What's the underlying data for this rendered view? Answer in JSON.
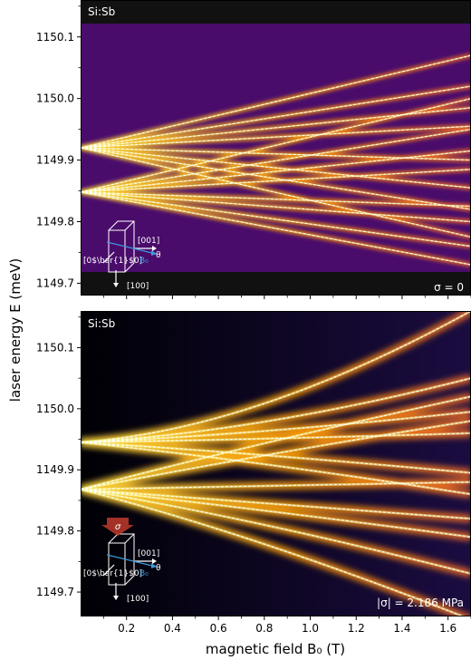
{
  "figure": {
    "ylabel": "laser energy E (meV)",
    "xlabel": "magnetic field B₀ (T)",
    "colormap": [
      "#000004",
      "#1b0c41",
      "#4a0c6b",
      "#781c6d",
      "#a52c60",
      "#cf4446",
      "#ed6925",
      "#fb9b06",
      "#f7d13d",
      "#fcffa4"
    ],
    "fit_line_color": "#ffffff"
  },
  "chart_data": [
    {
      "type": "heatmap",
      "panel": "top",
      "title": "",
      "tag": "Si:Sb",
      "stress_label": "σ = 0",
      "xlim": [
        0.0,
        1.7
      ],
      "ylim": [
        1149.68,
        1150.16
      ],
      "x_ticks": [
        0.2,
        0.4,
        0.6,
        0.8,
        1.0,
        1.2,
        1.4,
        1.6
      ],
      "x_tick_labels": [
        "0.2",
        "0.4",
        "0.6",
        "0.8",
        "1.0",
        "1.2",
        "1.4",
        "1.6"
      ],
      "y_ticks": [
        1149.7,
        1149.8,
        1149.9,
        1150.0,
        1150.1
      ],
      "y_tick_labels": [
        "1149.7",
        "1149.8",
        "1149.9",
        "1150.0",
        "1150.1"
      ],
      "grid": false,
      "origins": [
        1149.92,
        1149.848
      ],
      "lines": [
        {
          "origin": 0,
          "end": 1150.07
        },
        {
          "origin": 0,
          "end": 1150.02
        },
        {
          "origin": 0,
          "end": 1149.985
        },
        {
          "origin": 0,
          "end": 1149.955
        },
        {
          "origin": 0,
          "end": 1149.9
        },
        {
          "origin": 0,
          "end": 1149.855
        },
        {
          "origin": 0,
          "end": 1149.82
        },
        {
          "origin": 0,
          "end": 1149.775
        },
        {
          "origin": 1,
          "end": 1150.0
        },
        {
          "origin": 1,
          "end": 1149.95
        },
        {
          "origin": 1,
          "end": 1149.915
        },
        {
          "origin": 1,
          "end": 1149.885
        },
        {
          "origin": 1,
          "end": 1149.825
        },
        {
          "origin": 1,
          "end": 1149.8
        },
        {
          "origin": 1,
          "end": 1149.76
        },
        {
          "origin": 1,
          "end": 1149.73
        }
      ],
      "fit_lines_dashed": true,
      "diagram": {
        "labels": [
          "[0$\\bar{1}$0]",
          "[001]",
          "[100]",
          "B₀",
          "θ"
        ]
      }
    },
    {
      "type": "heatmap",
      "panel": "bottom",
      "title": "",
      "tag": "Si:Sb",
      "stress_label": "|σ| = 2.186 MPa",
      "xlim": [
        0.0,
        1.7
      ],
      "ylim": [
        1149.66,
        1150.16
      ],
      "x_ticks": [
        0.2,
        0.4,
        0.6,
        0.8,
        1.0,
        1.2,
        1.4,
        1.6
      ],
      "x_tick_labels": [
        "0.2",
        "0.4",
        "0.6",
        "0.8",
        "1.0",
        "1.2",
        "1.4",
        "1.6"
      ],
      "y_ticks": [
        1149.7,
        1149.8,
        1149.9,
        1150.0,
        1150.1
      ],
      "y_tick_labels": [
        "1149.7",
        "1149.8",
        "1149.9",
        "1150.0",
        "1150.1"
      ],
      "grid": false,
      "origins": [
        1149.945,
        1149.868
      ],
      "lines": [
        {
          "origin": 0,
          "end": 1150.16,
          "curve": 0.35
        },
        {
          "origin": 0,
          "end": 1150.05,
          "curve": 0.3
        },
        {
          "origin": 0,
          "end": 1149.995,
          "curve": 0.2
        },
        {
          "origin": 0,
          "end": 1149.96,
          "curve": 0.15
        },
        {
          "origin": 0,
          "end": 1149.895,
          "curve": 0.1
        },
        {
          "origin": 0,
          "end": 1149.86,
          "curve": 0.1
        },
        {
          "origin": 1,
          "end": 1150.02,
          "curve": -0.05
        },
        {
          "origin": 1,
          "end": 1149.98,
          "curve": -0.05
        },
        {
          "origin": 1,
          "end": 1149.88,
          "curve": 0.0
        },
        {
          "origin": 1,
          "end": 1149.82,
          "curve": 0.0
        },
        {
          "origin": 1,
          "end": 1149.79,
          "curve": 0.05
        },
        {
          "origin": 1,
          "end": 1149.73,
          "curve": 0.1
        },
        {
          "origin": 1,
          "end": 1149.655,
          "curve": 0.1
        }
      ],
      "fit_lines_dashed": true,
      "diagram": {
        "labels": [
          "σ",
          "[0$\\bar{1}$0]",
          "[001]",
          "[100]",
          "B₀",
          "θ"
        ]
      }
    }
  ]
}
